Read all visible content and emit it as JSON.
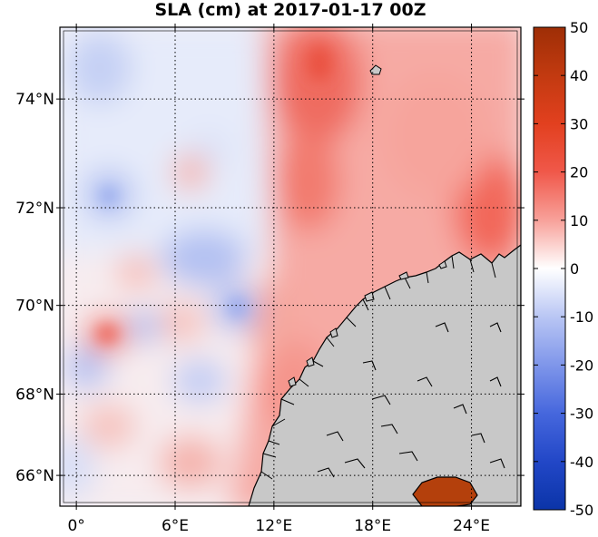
{
  "title": "SLA (cm) at 2017-01-17 00Z",
  "axes": {
    "lon_ticks": [
      {
        "value": 0,
        "label": "0°"
      },
      {
        "value": 6,
        "label": "6°E"
      },
      {
        "value": 12,
        "label": "12°E"
      },
      {
        "value": 18,
        "label": "18°E"
      },
      {
        "value": 24,
        "label": "24°E"
      }
    ],
    "lat_ticks": [
      {
        "value": 66,
        "label": "66°N"
      },
      {
        "value": 68,
        "label": "68°N"
      },
      {
        "value": 70,
        "label": "70°N"
      },
      {
        "value": 72,
        "label": "72°N"
      },
      {
        "value": 74,
        "label": "74°N"
      }
    ],
    "lon_range": [
      -1,
      27
    ],
    "lat_range": [
      65.2,
      75.2
    ],
    "grid": true
  },
  "colorbar": {
    "ticks": [
      {
        "value": 50,
        "label": "50"
      },
      {
        "value": 40,
        "label": "40"
      },
      {
        "value": 30,
        "label": "30"
      },
      {
        "value": 20,
        "label": "20"
      },
      {
        "value": 10,
        "label": "10"
      },
      {
        "value": 0,
        "label": "0"
      },
      {
        "value": -10,
        "label": "-10"
      },
      {
        "value": -20,
        "label": "-20"
      },
      {
        "value": -30,
        "label": "-30"
      },
      {
        "value": -40,
        "label": "-40"
      },
      {
        "value": -50,
        "label": "-50"
      }
    ],
    "range": [
      -50,
      50
    ],
    "colors": {
      "low": "#0b3aa8",
      "mid": "#ffffff",
      "high": "#b03a0a"
    }
  },
  "colors": {
    "land": "#c8c8c8",
    "coast": "#000000"
  }
}
